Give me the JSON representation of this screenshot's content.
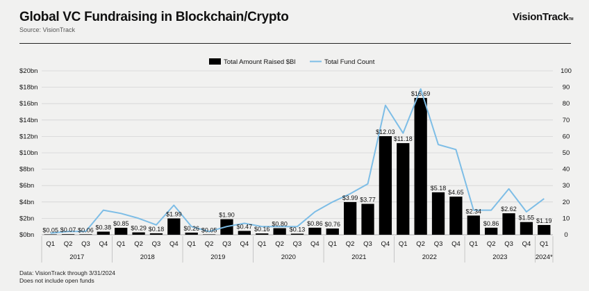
{
  "header": {
    "title": "Global VC Fundraising in Blockchain/Crypto",
    "subtitle": "Source: VisionTrack",
    "brand": "VisionTrack",
    "brand_tm": "TM"
  },
  "footer": {
    "line1": "Data: VisionTrack through 3/31/2024",
    "line2": "Does not include open funds"
  },
  "chart_data": {
    "type": "bar",
    "title": "Global VC Fundraising in Blockchain/Crypto",
    "categories": [
      "Q1",
      "Q2",
      "Q3",
      "Q4",
      "Q1",
      "Q2",
      "Q3",
      "Q4",
      "Q1",
      "Q2",
      "Q3",
      "Q4",
      "Q1",
      "Q2",
      "Q3",
      "Q4",
      "Q1",
      "Q2",
      "Q3",
      "Q4",
      "Q1",
      "Q2",
      "Q3",
      "Q4",
      "Q1",
      "Q2",
      "Q3",
      "Q4",
      "Q1"
    ],
    "years": [
      {
        "label": "2017",
        "start": 0,
        "count": 4
      },
      {
        "label": "2018",
        "start": 4,
        "count": 4
      },
      {
        "label": "2019",
        "start": 8,
        "count": 4
      },
      {
        "label": "2020",
        "start": 12,
        "count": 4
      },
      {
        "label": "2021",
        "start": 16,
        "count": 4
      },
      {
        "label": "2022",
        "start": 20,
        "count": 4
      },
      {
        "label": "2023",
        "start": 24,
        "count": 4
      },
      {
        "label": "2024*",
        "start": 28,
        "count": 1
      }
    ],
    "series": [
      {
        "name": "Total Amount Raised $Bl",
        "type": "bar",
        "axis": "left",
        "color": "#000000",
        "values": [
          0.05,
          0.07,
          0.06,
          0.38,
          0.85,
          0.29,
          0.18,
          1.99,
          0.26,
          0.05,
          1.9,
          0.47,
          0.16,
          0.8,
          0.13,
          0.86,
          0.76,
          3.99,
          3.77,
          12.03,
          11.18,
          16.69,
          5.18,
          4.65,
          2.34,
          0.86,
          2.62,
          1.55,
          1.19
        ],
        "labels": [
          "$0.05",
          "$0.07",
          "$0.06",
          "$0.38",
          "$0.85",
          "$0.29",
          "$0.18",
          "$1.99",
          "$0.26",
          "$0.05",
          "$1.90",
          "$0.47",
          "$0.16",
          "$0.80",
          "$0.13",
          "$0.86",
          "$0.76",
          "$3.99",
          "$3.77",
          "$12.03",
          "$11.18",
          "$16.69",
          "$5.18",
          "$4.65",
          "$2.34",
          "$0.86",
          "$2.62",
          "$1.55",
          "$1.19"
        ]
      },
      {
        "name": "Total Fund Count",
        "type": "line",
        "axis": "right",
        "color": "#7dbde6",
        "values": [
          1,
          2,
          2,
          15,
          13,
          10,
          6,
          18,
          5,
          2,
          5,
          7,
          5,
          5,
          5,
          14,
          20,
          25,
          31,
          79,
          62,
          89,
          55,
          52,
          15,
          15,
          28,
          14,
          22
        ]
      }
    ],
    "y_left": {
      "ylim": [
        0,
        20
      ],
      "ticks": [
        0,
        2,
        4,
        6,
        8,
        10,
        12,
        14,
        16,
        18,
        20
      ],
      "tick_labels": [
        "$0bn",
        "$2bn",
        "$4bn",
        "$6bn",
        "$8bn",
        "$10bn",
        "$12bn",
        "$14bn",
        "$16bn",
        "$18bn",
        "$20bn"
      ]
    },
    "y_right": {
      "ylim": [
        0,
        100
      ],
      "ticks": [
        0,
        10,
        20,
        30,
        40,
        50,
        60,
        70,
        80,
        90,
        100
      ],
      "tick_labels": [
        "0",
        "10",
        "20",
        "30",
        "40",
        "50",
        "60",
        "70",
        "80",
        "90",
        "100"
      ]
    },
    "legend_position": "top-center",
    "grid": true
  },
  "colors": {
    "background": "#f1f1f0",
    "grid": "#d4d4d4",
    "bar": "#000000",
    "line": "#7dbde6"
  }
}
